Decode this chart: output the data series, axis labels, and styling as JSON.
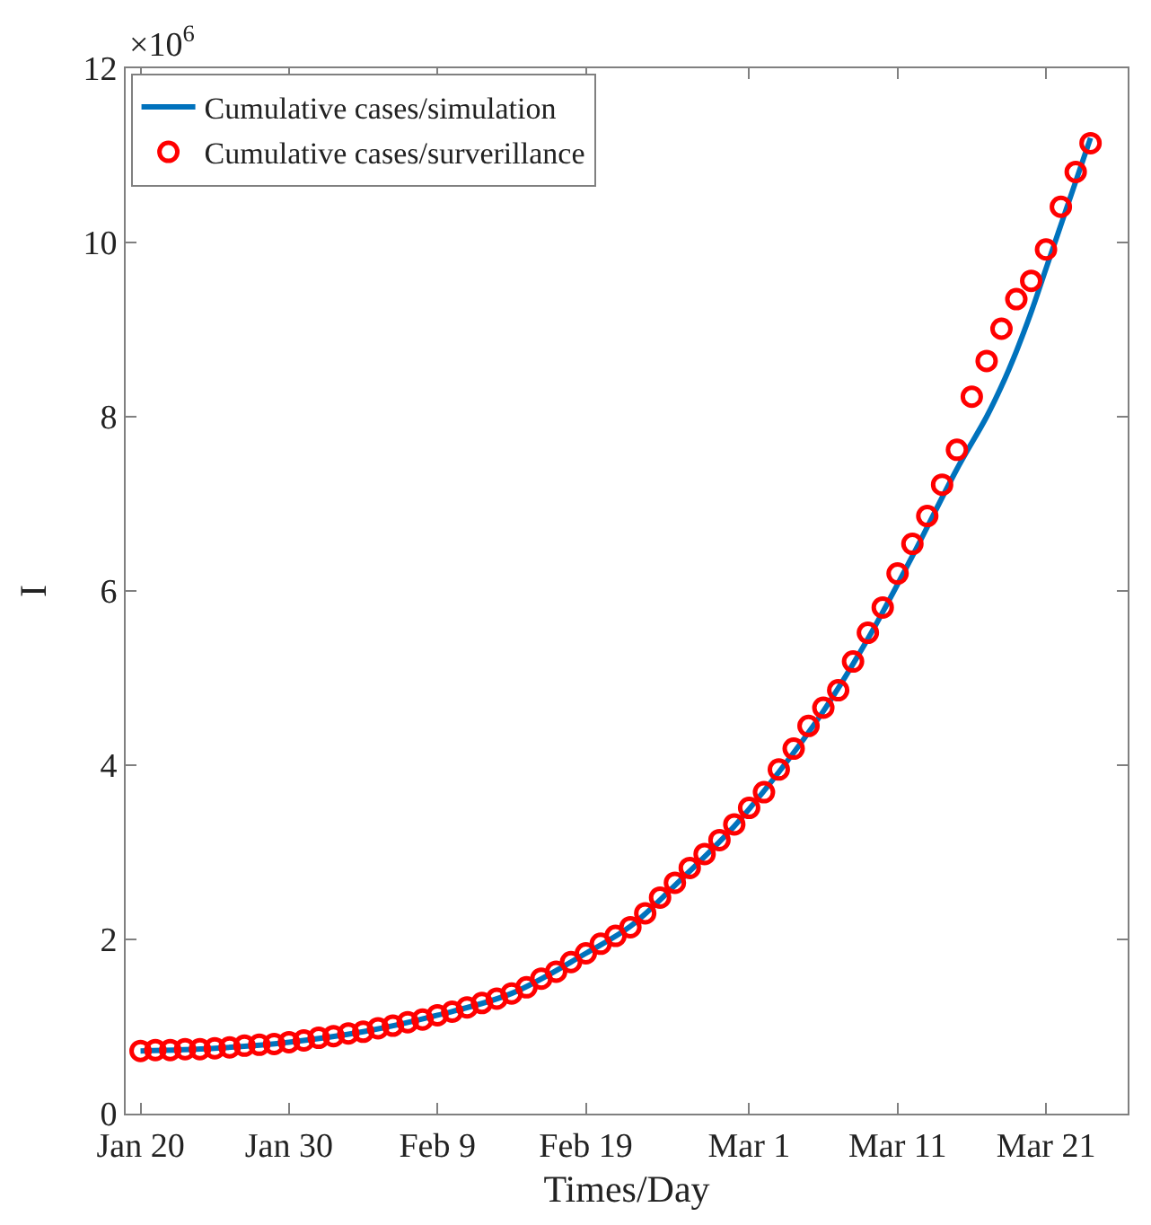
{
  "chart_data": {
    "type": "line",
    "xlabel": "Times/Day",
    "ylabel": "I",
    "annotations": [
      "×10$^{6}$"
    ],
    "xlim": [
      "--01-19",
      "--03-26T12:00"
    ],
    "xticks": [
      {
        "value": "--01-20",
        "label": "Jan 20"
      },
      {
        "value": "--01-30",
        "label": "Jan 30"
      },
      {
        "value": "--02-09",
        "label": "Feb 9"
      },
      {
        "value": "--02-19",
        "label": "Feb 19"
      },
      {
        "value": "--03-01",
        "label": "Mar 1"
      },
      {
        "value": "--03-11",
        "label": "Mar 11"
      },
      {
        "value": "--03-21",
        "label": "Mar 21"
      }
    ],
    "ylim": [
      0,
      12
    ],
    "yticks": [
      0,
      2,
      4,
      6,
      8,
      10,
      12
    ],
    "grid": false,
    "legend": "top left",
    "series": [
      {
        "name": "Cumulative cases/simulation",
        "color": "#0072bd",
        "line_style": "solid",
        "marker": "none",
        "x": [
          "--01-20",
          "--01-25",
          "--01-30",
          "--02-04",
          "--02-09",
          "--02-14",
          "--02-19",
          "--02-22",
          "--02-25",
          "--02-29",
          "--03-03",
          "--03-06",
          "--03-09",
          "--03-12",
          "--03-15",
          "--03-17",
          "--03-18",
          "--03-19",
          "--03-20",
          "--03-21",
          "--03-23",
          "--03-24"
        ],
        "values": [
          0.72,
          0.75,
          0.82,
          0.94,
          1.13,
          1.38,
          1.84,
          2.15,
          2.62,
          3.3,
          3.92,
          4.62,
          5.45,
          6.4,
          7.4,
          8.0,
          8.35,
          8.75,
          9.2,
          9.7,
          10.7,
          11.2
        ]
      },
      {
        "name": "Cumulative cases/surverillance",
        "type": "scatter",
        "color": "#ff0000",
        "marker": "circle",
        "x": [
          "--01-20",
          "--01-21",
          "--01-22",
          "--01-23",
          "--01-24",
          "--01-25",
          "--01-26",
          "--01-27",
          "--01-28",
          "--01-29",
          "--01-30",
          "--01-31",
          "--02-01",
          "--02-02",
          "--02-03",
          "--02-04",
          "--02-05",
          "--02-06",
          "--02-07",
          "--02-08",
          "--02-09",
          "--02-10",
          "--02-11",
          "--02-12",
          "--02-13",
          "--02-14",
          "--02-15",
          "--02-16",
          "--02-17",
          "--02-18",
          "--02-19",
          "--02-20",
          "--02-21",
          "--02-22",
          "--02-23",
          "--02-24",
          "--02-25",
          "--02-26",
          "--02-27",
          "--02-28",
          "--02-29",
          "--03-01",
          "--03-02",
          "--03-03",
          "--03-04",
          "--03-05",
          "--03-06",
          "--03-07",
          "--03-08",
          "--03-09",
          "--03-10",
          "--03-11",
          "--03-12",
          "--03-13",
          "--03-14",
          "--03-15",
          "--03-16",
          "--03-17",
          "--03-18",
          "--03-19",
          "--03-20",
          "--03-21",
          "--03-22",
          "--03-23",
          "--03-24"
        ],
        "values": [
          0.72,
          0.73,
          0.73,
          0.74,
          0.74,
          0.75,
          0.76,
          0.78,
          0.79,
          0.8,
          0.82,
          0.84,
          0.87,
          0.89,
          0.92,
          0.94,
          0.98,
          1.01,
          1.05,
          1.08,
          1.13,
          1.17,
          1.22,
          1.27,
          1.32,
          1.38,
          1.45,
          1.55,
          1.63,
          1.74,
          1.84,
          1.95,
          2.04,
          2.14,
          2.3,
          2.48,
          2.65,
          2.82,
          2.98,
          3.14,
          3.32,
          3.51,
          3.69,
          3.95,
          4.19,
          4.45,
          4.66,
          4.86,
          5.19,
          5.52,
          5.81,
          6.2,
          6.54,
          6.86,
          7.22,
          7.62,
          8.23,
          8.64,
          9.01,
          9.35,
          9.56,
          9.92,
          10.41,
          10.81,
          11.14
        ]
      }
    ]
  }
}
